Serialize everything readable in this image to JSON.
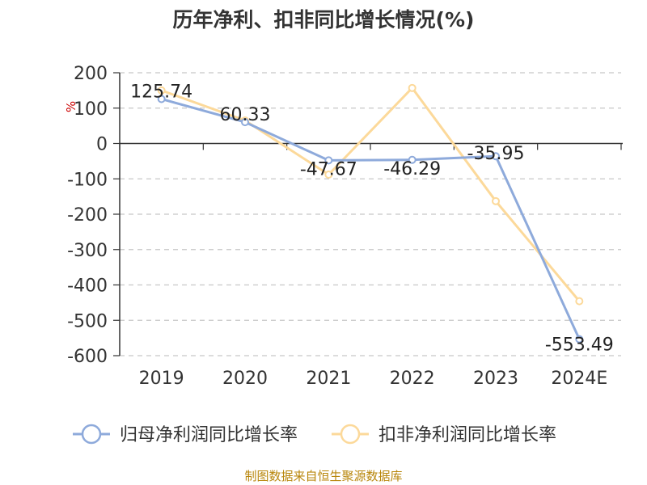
{
  "chart_data": {
    "type": "line",
    "title": "历年净利、扣非同比增长情况(%)",
    "ylabel": "%",
    "categories": [
      "2019",
      "2020",
      "2021",
      "2022",
      "2023",
      "2024E"
    ],
    "ylim": [
      -600,
      200
    ],
    "yticks": [
      200,
      100,
      0,
      -100,
      -200,
      -300,
      -400,
      -500,
      -600
    ],
    "grid": true,
    "legend_position": "bottom",
    "series": [
      {
        "name": "归母净利润同比增长率",
        "values": [
          125.74,
          60.33,
          -47.67,
          -46.29,
          -35.95,
          -553.49
        ],
        "labels": [
          "125.74",
          "60.33",
          "-47.67",
          "-46.29",
          "-35.95",
          "-553.49"
        ],
        "color": "#8eaadb"
      },
      {
        "name": "扣非净利润同比增长率",
        "values": [
          150,
          65,
          -88,
          157,
          -163,
          -446
        ],
        "color": "#fcd99a"
      }
    ]
  },
  "source": "制图数据来自恒生聚源数据库"
}
